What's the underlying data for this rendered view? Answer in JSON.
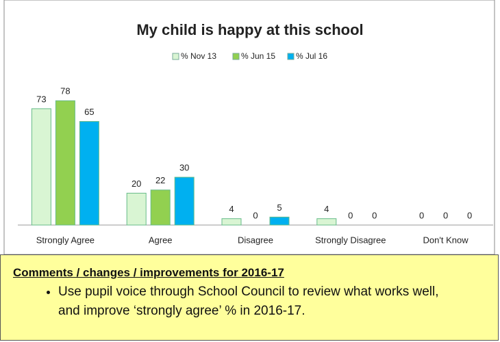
{
  "chart_data": {
    "type": "bar",
    "title": "My child is happy at this school",
    "categories": [
      "Strongly Agree",
      "Agree",
      "Disagree",
      "Strongly Disagree",
      "Don't Know"
    ],
    "series": [
      {
        "name": "% Nov 13",
        "color": "#d9f5d3",
        "values": [
          73,
          20,
          4,
          4,
          0
        ]
      },
      {
        "name": "% Jun 15",
        "color": "#92d050",
        "values": [
          78,
          22,
          0,
          0,
          0
        ]
      },
      {
        "name": "% Jul 16",
        "color": "#00b0f0",
        "values": [
          65,
          30,
          5,
          0,
          0
        ]
      }
    ],
    "legend": "top"
  },
  "comments": {
    "heading": "Comments / changes / improvements for 2016-17",
    "bullets": [
      "Use pupil voice through School Council to review what works well, and improve ‘strongly agree’ % in 2016-17."
    ]
  }
}
